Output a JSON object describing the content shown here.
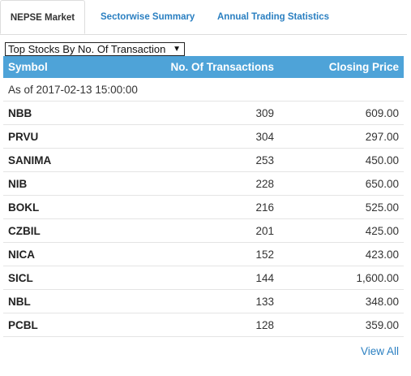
{
  "tabs": [
    {
      "label": "NEPSE Market",
      "active": true
    },
    {
      "label": "Sectorwise Summary",
      "active": false
    },
    {
      "label": "Annual Trading Statistics",
      "active": false
    }
  ],
  "selector": {
    "selected": "Top Stocks By No. Of Transaction",
    "arrow_icon": "triangle-down-icon"
  },
  "table": {
    "headers": {
      "symbol": "Symbol",
      "transactions": "No. Of Transactions",
      "price": "Closing Price"
    },
    "as_of": "As of 2017-02-13 15:00:00",
    "rows": [
      {
        "symbol": "NBB",
        "transactions": "309",
        "price": "609.00"
      },
      {
        "symbol": "PRVU",
        "transactions": "304",
        "price": "297.00"
      },
      {
        "symbol": "SANIMA",
        "transactions": "253",
        "price": "450.00"
      },
      {
        "symbol": "NIB",
        "transactions": "228",
        "price": "650.00"
      },
      {
        "symbol": "BOKL",
        "transactions": "216",
        "price": "525.00"
      },
      {
        "symbol": "CZBIL",
        "transactions": "201",
        "price": "425.00"
      },
      {
        "symbol": "NICA",
        "transactions": "152",
        "price": "423.00"
      },
      {
        "symbol": "SICL",
        "transactions": "144",
        "price": "1,600.00"
      },
      {
        "symbol": "NBL",
        "transactions": "133",
        "price": "348.00"
      },
      {
        "symbol": "PCBL",
        "transactions": "128",
        "price": "359.00"
      }
    ]
  },
  "footer": {
    "view_all": "View All"
  },
  "colors": {
    "header_bg": "#4ea3d8",
    "link": "#2a7fc1"
  }
}
